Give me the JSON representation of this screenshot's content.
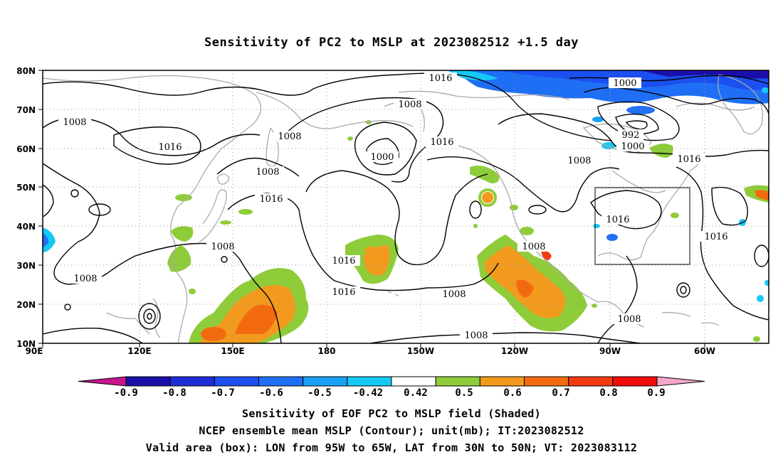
{
  "title": "Sensitivity of PC2 to MSLP at 2023082512 +1.5 day",
  "axes": {
    "lat_ticks": [
      "80N",
      "70N",
      "60N",
      "50N",
      "40N",
      "30N",
      "20N",
      "10N"
    ],
    "lon_ticks": [
      "90E",
      "120E",
      "150E",
      "180",
      "150W",
      "120W",
      "90W",
      "60W"
    ]
  },
  "contour_labels": [
    {
      "text": "1016"
    },
    {
      "text": "1000"
    },
    {
      "text": "1008"
    },
    {
      "text": "1008"
    },
    {
      "text": "1016"
    },
    {
      "text": "1008"
    },
    {
      "text": "1008"
    },
    {
      "text": "1000"
    },
    {
      "text": "1016"
    },
    {
      "text": "992"
    },
    {
      "text": "1000"
    },
    {
      "text": "1008"
    },
    {
      "text": "1016"
    },
    {
      "text": "1016"
    },
    {
      "text": "1016"
    },
    {
      "text": "1016"
    },
    {
      "text": "1008"
    },
    {
      "text": "1008"
    },
    {
      "text": "1016"
    },
    {
      "text": "1016"
    },
    {
      "text": "1008"
    },
    {
      "text": "1008"
    },
    {
      "text": "1008"
    }
  ],
  "colorbar": {
    "labels": [
      "-0.9",
      "-0.8",
      "-0.7",
      "-0.6",
      "-0.5",
      "-0.42",
      "0.42",
      "0.5",
      "0.6",
      "0.7",
      "0.8",
      "0.9"
    ],
    "colors": [
      "#c8158c",
      "#1a0fa8",
      "#1d2ed6",
      "#1b4ff0",
      "#1f6ff5",
      "#1aa0f5",
      "#16c9f5",
      "#ffffff",
      "#8fcc3a",
      "#f29a1e",
      "#f26a10",
      "#f23a10",
      "#f00a0a",
      "#f4a8cc"
    ]
  },
  "valid_box": {
    "lon_from": "95W",
    "lon_to": "65W",
    "lat_from": "30N",
    "lat_to": "50N"
  },
  "footer": {
    "line1": "Sensitivity of EOF PC2 to MSLP field (Shaded)",
    "line2": "NCEP ensemble mean MSLP (Contour); unit(mb); IT:2023082512",
    "line3": "Valid area (box): LON from 95W to 65W, LAT from 30N to 50N; VT: 2023083112"
  }
}
